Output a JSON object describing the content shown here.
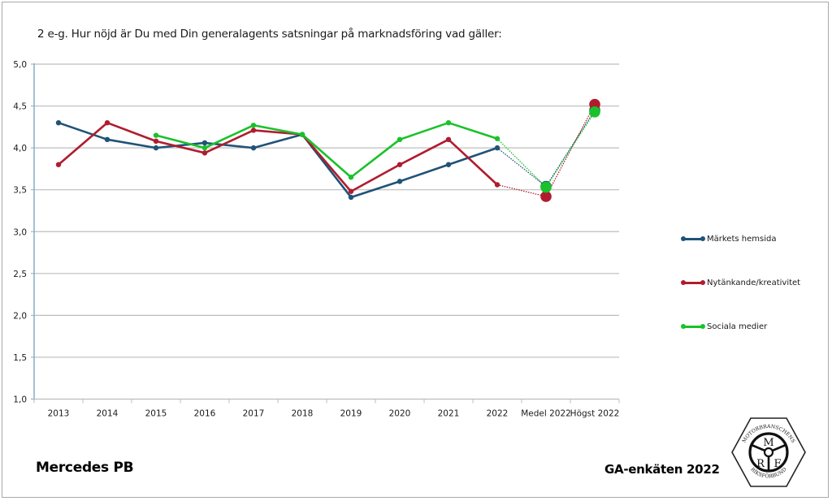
{
  "title": "2 e-g. Hur nöjd är Du med Din generalagents satsningar på marknadsföring vad gäller:",
  "footer": {
    "brand": "Mercedes PB",
    "survey": "GA-enkäten 2022"
  },
  "logo": {
    "top_text": "MOTORBRANSCHENS",
    "bottom_text": "RIKSFÖRBUND",
    "letters": [
      "M",
      "R",
      "F"
    ]
  },
  "chart_data": {
    "type": "line",
    "title": "2 e-g. Hur nöjd är Du med Din generalagents satsningar på marknadsföring vad gäller:",
    "xlabel": "",
    "ylabel": "",
    "categories": [
      "2013",
      "2014",
      "2015",
      "2016",
      "2017",
      "2018",
      "2019",
      "2020",
      "2021",
      "2022",
      "Medel 2022",
      "Högst 2022"
    ],
    "ylim": [
      1.0,
      5.0
    ],
    "yticks": [
      "1,0",
      "1,5",
      "2,0",
      "2,5",
      "3,0",
      "3,5",
      "4,0",
      "4,5",
      "5,0"
    ],
    "ytick_values": [
      1.0,
      1.5,
      2.0,
      2.5,
      3.0,
      3.5,
      4.0,
      4.5,
      5.0
    ],
    "grid": true,
    "legend_position": "right",
    "series": [
      {
        "name": "Märkets hemsida",
        "color": "#1f5378",
        "values": [
          4.3,
          4.1,
          4.0,
          4.06,
          4.0,
          4.16,
          3.41,
          3.6,
          3.8,
          4.0,
          3.54,
          4.45
        ]
      },
      {
        "name": "Nytänkande/kreativitet",
        "color": "#b01c2e",
        "values": [
          3.8,
          4.3,
          4.08,
          3.94,
          4.21,
          4.16,
          3.48,
          3.8,
          4.1,
          3.56,
          3.42,
          4.52
        ]
      },
      {
        "name": "Sociala medier",
        "color": "#19c22a",
        "values": [
          null,
          null,
          4.15,
          4.0,
          4.27,
          4.16,
          3.65,
          4.1,
          4.3,
          4.11,
          3.53,
          4.43
        ]
      }
    ],
    "annotations": [
      "Medel 2022 and Högst 2022 shown as large markers joined by dotted connectors"
    ]
  }
}
